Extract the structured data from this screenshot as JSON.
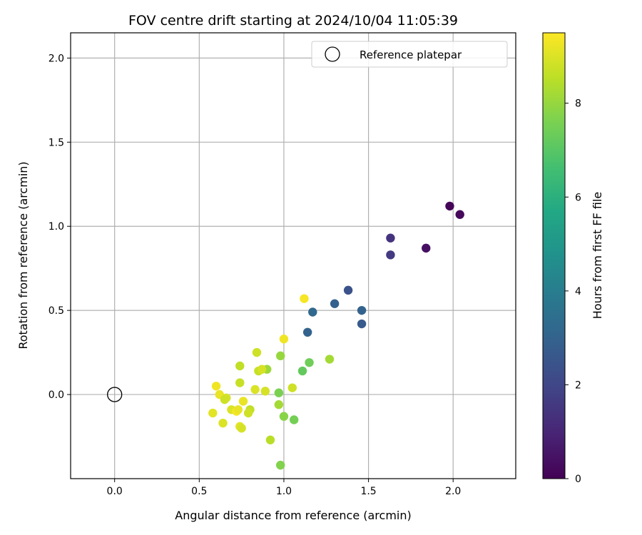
{
  "chart_data": {
    "type": "scatter",
    "title": "FOV centre drift starting at 2024/10/04 11:05:39",
    "xlabel": "Angular distance from reference (arcmin)",
    "ylabel": "Rotation from reference (arcmin)",
    "xlim": [
      -0.26,
      2.37
    ],
    "ylim": [
      -0.5,
      2.15
    ],
    "xticks": [
      0.0,
      0.5,
      1.0,
      1.5,
      2.0
    ],
    "yticks": [
      0.0,
      0.5,
      1.0,
      1.5,
      2.0
    ],
    "xtick_labels": [
      "0.0",
      "0.5",
      "1.0",
      "1.5",
      "2.0"
    ],
    "ytick_labels": [
      "0.0",
      "0.5",
      "1.0",
      "1.5",
      "2.0"
    ],
    "grid": true,
    "legend": {
      "label": "Reference platepar",
      "placement": "top-right"
    },
    "reference_point": {
      "x": 0.0,
      "y": 0.0
    },
    "colorbar": {
      "label": "Hours from first FF file",
      "colormap": "viridis",
      "range": [
        0,
        9.5
      ],
      "ticks": [
        0,
        2,
        4,
        6,
        8
      ],
      "tick_labels": [
        "0",
        "2",
        "4",
        "6",
        "8"
      ]
    },
    "points": [
      {
        "x": 1.98,
        "y": 1.12,
        "c": 0.1
      },
      {
        "x": 2.04,
        "y": 1.07,
        "c": 0.2
      },
      {
        "x": 1.84,
        "y": 0.87,
        "c": 0.4
      },
      {
        "x": 1.63,
        "y": 0.93,
        "c": 1.4
      },
      {
        "x": 1.63,
        "y": 0.83,
        "c": 1.6
      },
      {
        "x": 1.38,
        "y": 0.62,
        "c": 2.4
      },
      {
        "x": 1.3,
        "y": 0.54,
        "c": 2.9
      },
      {
        "x": 1.46,
        "y": 0.5,
        "c": 3.0
      },
      {
        "x": 1.46,
        "y": 0.42,
        "c": 2.7
      },
      {
        "x": 1.17,
        "y": 0.49,
        "c": 3.2
      },
      {
        "x": 1.14,
        "y": 0.37,
        "c": 3.0
      },
      {
        "x": 1.12,
        "y": 0.57,
        "c": 9.4
      },
      {
        "x": 1.0,
        "y": 0.33,
        "c": 9.3
      },
      {
        "x": 1.27,
        "y": 0.21,
        "c": 8.2
      },
      {
        "x": 1.15,
        "y": 0.19,
        "c": 7.4
      },
      {
        "x": 1.11,
        "y": 0.14,
        "c": 7.2
      },
      {
        "x": 0.98,
        "y": 0.23,
        "c": 8.0
      },
      {
        "x": 0.84,
        "y": 0.25,
        "c": 8.8
      },
      {
        "x": 0.9,
        "y": 0.15,
        "c": 8.1
      },
      {
        "x": 0.74,
        "y": 0.17,
        "c": 8.6
      },
      {
        "x": 0.85,
        "y": 0.14,
        "c": 8.7
      },
      {
        "x": 0.87,
        "y": 0.15,
        "c": 8.9
      },
      {
        "x": 0.74,
        "y": 0.07,
        "c": 8.7
      },
      {
        "x": 0.83,
        "y": 0.03,
        "c": 9.0
      },
      {
        "x": 0.89,
        "y": 0.02,
        "c": 8.9
      },
      {
        "x": 0.97,
        "y": 0.01,
        "c": 7.6
      },
      {
        "x": 1.05,
        "y": 0.04,
        "c": 8.8
      },
      {
        "x": 0.6,
        "y": 0.05,
        "c": 9.3
      },
      {
        "x": 0.62,
        "y": 0.0,
        "c": 9.2
      },
      {
        "x": 0.66,
        "y": -0.02,
        "c": 8.9
      },
      {
        "x": 0.65,
        "y": -0.03,
        "c": 8.8
      },
      {
        "x": 0.76,
        "y": -0.04,
        "c": 9.2
      },
      {
        "x": 0.97,
        "y": -0.06,
        "c": 8.2
      },
      {
        "x": 0.69,
        "y": -0.09,
        "c": 9.0
      },
      {
        "x": 0.72,
        "y": -0.1,
        "c": 9.4
      },
      {
        "x": 0.73,
        "y": -0.09,
        "c": 9.2
      },
      {
        "x": 0.8,
        "y": -0.09,
        "c": 8.6
      },
      {
        "x": 0.79,
        "y": -0.11,
        "c": 8.8
      },
      {
        "x": 0.58,
        "y": -0.11,
        "c": 9.1
      },
      {
        "x": 1.0,
        "y": -0.13,
        "c": 7.8
      },
      {
        "x": 1.06,
        "y": -0.15,
        "c": 7.5
      },
      {
        "x": 0.64,
        "y": -0.17,
        "c": 9.0
      },
      {
        "x": 0.74,
        "y": -0.19,
        "c": 9.1
      },
      {
        "x": 0.75,
        "y": -0.2,
        "c": 8.9
      },
      {
        "x": 0.92,
        "y": -0.27,
        "c": 8.5
      },
      {
        "x": 0.98,
        "y": -0.42,
        "c": 7.7
      }
    ]
  }
}
